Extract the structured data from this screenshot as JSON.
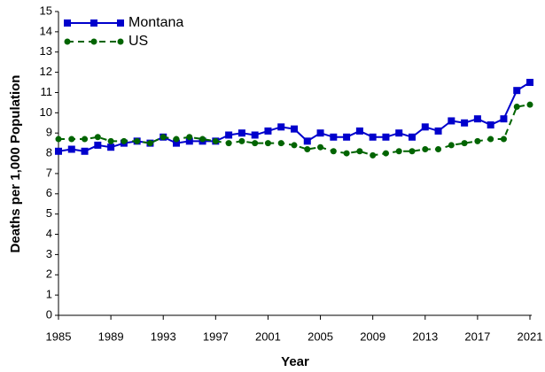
{
  "chart_data": {
    "type": "line",
    "x_label": "Year",
    "y_label": "Deaths per 1,000 Population",
    "x": [
      1985,
      1986,
      1987,
      1988,
      1989,
      1990,
      1991,
      1992,
      1993,
      1994,
      1995,
      1996,
      1997,
      1998,
      1999,
      2000,
      2001,
      2002,
      2003,
      2004,
      2005,
      2006,
      2007,
      2008,
      2009,
      2010,
      2011,
      2012,
      2013,
      2014,
      2015,
      2016,
      2017,
      2018,
      2019,
      2020,
      2021
    ],
    "series": [
      {
        "name": "Montana",
        "color": "#0000cc",
        "dashed": false,
        "marker": "square",
        "values": [
          8.1,
          8.2,
          8.1,
          8.4,
          8.3,
          8.5,
          8.6,
          8.5,
          8.8,
          8.5,
          8.6,
          8.6,
          8.6,
          8.9,
          9.0,
          8.9,
          9.1,
          9.3,
          9.2,
          8.6,
          9.0,
          8.8,
          8.8,
          9.1,
          8.8,
          8.8,
          9.0,
          8.8,
          9.3,
          9.1,
          9.6,
          9.5,
          9.7,
          9.4,
          9.7,
          11.1,
          11.5
        ]
      },
      {
        "name": "US",
        "color": "#006400",
        "dashed": true,
        "marker": "circle",
        "values": [
          8.7,
          8.7,
          8.7,
          8.8,
          8.6,
          8.6,
          8.6,
          8.5,
          8.8,
          8.7,
          8.8,
          8.7,
          8.6,
          8.5,
          8.6,
          8.5,
          8.5,
          8.5,
          8.4,
          8.2,
          8.3,
          8.1,
          8.0,
          8.1,
          7.9,
          8.0,
          8.1,
          8.1,
          8.2,
          8.2,
          8.4,
          8.5,
          8.6,
          8.7,
          8.7,
          10.3,
          10.4
        ]
      }
    ],
    "xlim": [
      1985,
      2021
    ],
    "xticks": [
      1985,
      1989,
      1993,
      1997,
      2001,
      2005,
      2009,
      2013,
      2017,
      2021
    ],
    "ylim": [
      0,
      15
    ],
    "yticks": [
      0,
      1,
      2,
      3,
      4,
      5,
      6,
      7,
      8,
      9,
      10,
      11,
      12,
      13,
      14,
      15
    ],
    "legend": "top-left",
    "grid": false
  }
}
